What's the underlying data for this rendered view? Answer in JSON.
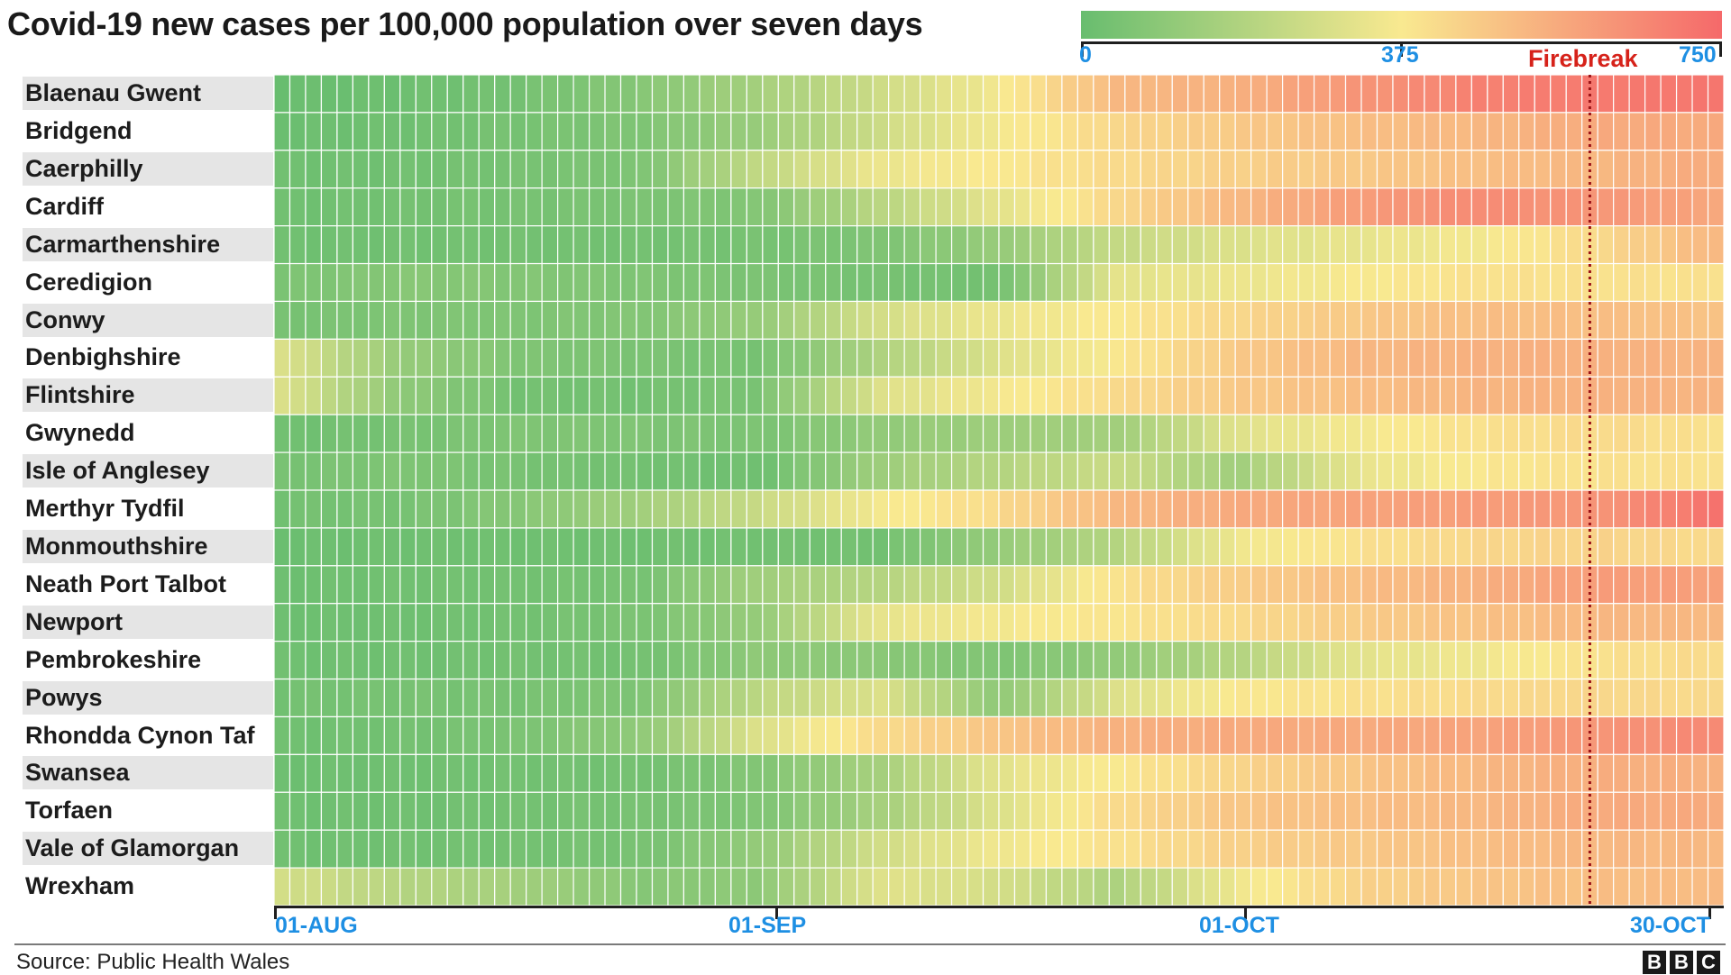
{
  "chart_data": {
    "type": "heatmap",
    "title": "Covid-19 new cases per 100,000 population over seven days",
    "colorscale": {
      "min": 0,
      "mid": 375,
      "max": 750,
      "stops": [
        "#68bd6f",
        "#f9e990",
        "#f5696a"
      ],
      "tick_labels": [
        "0",
        "375",
        "750"
      ]
    },
    "x_ticks": [
      "01-AUG",
      "01-SEP",
      "01-OCT",
      "30-OCT"
    ],
    "x_tick_dates": [
      "2020-08-01",
      "2020-09-01",
      "2020-10-01",
      "2020-10-30"
    ],
    "x_range": [
      "2020-08-01",
      "2020-10-31"
    ],
    "grid": true,
    "annotation": {
      "label": "Firebreak",
      "date": "2020-10-23",
      "color": "#d6221a"
    },
    "rows": [
      {
        "name": "Blaenau Gwent",
        "values": [
          5,
          15,
          35,
          80,
          160,
          260,
          360,
          520,
          540,
          620,
          680,
          700,
          710
        ]
      },
      {
        "name": "Bridgend",
        "values": [
          10,
          20,
          40,
          60,
          130,
          260,
          360,
          430,
          470,
          500,
          520,
          560,
          560
        ]
      },
      {
        "name": "Caerphilly",
        "values": [
          20,
          25,
          40,
          55,
          230,
          340,
          380,
          420,
          450,
          470,
          500,
          520,
          560
        ]
      },
      {
        "name": "Cardiff",
        "values": [
          20,
          30,
          40,
          50,
          70,
          210,
          320,
          430,
          520,
          600,
          650,
          620,
          570
        ]
      },
      {
        "name": "Carmarthenshire",
        "values": [
          20,
          25,
          30,
          30,
          40,
          60,
          120,
          240,
          300,
          330,
          360,
          420,
          520
        ]
      },
      {
        "name": "Ceredigion",
        "values": [
          50,
          80,
          70,
          60,
          50,
          40,
          30,
          320,
          340,
          370,
          400,
          400,
          400
        ]
      },
      {
        "name": "Conwy",
        "values": [
          40,
          60,
          60,
          70,
          120,
          280,
          340,
          380,
          430,
          470,
          500,
          500,
          490
        ]
      },
      {
        "name": "Denbighshire",
        "values": [
          300,
          120,
          60,
          50,
          40,
          180,
          300,
          380,
          470,
          520,
          540,
          540,
          530
        ]
      },
      {
        "name": "Flintshire",
        "values": [
          300,
          100,
          30,
          30,
          50,
          300,
          360,
          420,
          470,
          500,
          530,
          540,
          530
        ]
      },
      {
        "name": "Gwynedd",
        "values": [
          20,
          40,
          60,
          60,
          50,
          110,
          140,
          150,
          310,
          360,
          400,
          420,
          400
        ]
      },
      {
        "name": "Isle of Anglesey",
        "values": [
          40,
          60,
          40,
          30,
          20,
          140,
          200,
          250,
          150,
          330,
          380,
          400,
          400
        ]
      },
      {
        "name": "Merthyr Tydfil",
        "values": [
          30,
          40,
          80,
          150,
          250,
          360,
          420,
          520,
          560,
          580,
          600,
          620,
          720
        ]
      },
      {
        "name": "Monmouthshire",
        "values": [
          10,
          20,
          20,
          20,
          30,
          30,
          120,
          200,
          350,
          400,
          430,
          440,
          420
        ]
      },
      {
        "name": "Neath Port Talbot",
        "values": [
          15,
          25,
          30,
          40,
          150,
          200,
          270,
          400,
          460,
          500,
          540,
          600,
          590
        ]
      },
      {
        "name": "Newport",
        "values": [
          15,
          20,
          30,
          50,
          120,
          330,
          360,
          390,
          420,
          460,
          490,
          520,
          520
        ]
      },
      {
        "name": "Pembrokeshire",
        "values": [
          20,
          20,
          30,
          30,
          100,
          90,
          60,
          110,
          200,
          320,
          350,
          400,
          420
        ]
      },
      {
        "name": "Powys",
        "values": [
          30,
          40,
          40,
          60,
          220,
          300,
          100,
          300,
          380,
          400,
          420,
          430,
          420
        ]
      },
      {
        "name": "Rhondda Cynon Taf",
        "values": [
          20,
          30,
          50,
          100,
          300,
          420,
          480,
          540,
          560,
          560,
          580,
          620,
          660
        ]
      },
      {
        "name": "Swansea",
        "values": [
          15,
          20,
          30,
          30,
          70,
          160,
          320,
          380,
          440,
          480,
          520,
          550,
          540
        ]
      },
      {
        "name": "Torfaen",
        "values": [
          20,
          20,
          30,
          40,
          60,
          160,
          300,
          420,
          480,
          500,
          520,
          560,
          560
        ]
      },
      {
        "name": "Vale of Glamorgan",
        "values": [
          20,
          25,
          30,
          40,
          110,
          270,
          350,
          400,
          450,
          470,
          500,
          520,
          520
        ]
      },
      {
        "name": "Wrexham",
        "values": [
          280,
          200,
          150,
          80,
          100,
          310,
          280,
          180,
          350,
          440,
          480,
          500,
          510
        ]
      }
    ],
    "row_label_bg": [
      "#e5e5e5",
      "#ffffff"
    ]
  },
  "footer": {
    "source": "Source: Public Health Wales",
    "logo_letters": [
      "B",
      "B",
      "C"
    ]
  }
}
